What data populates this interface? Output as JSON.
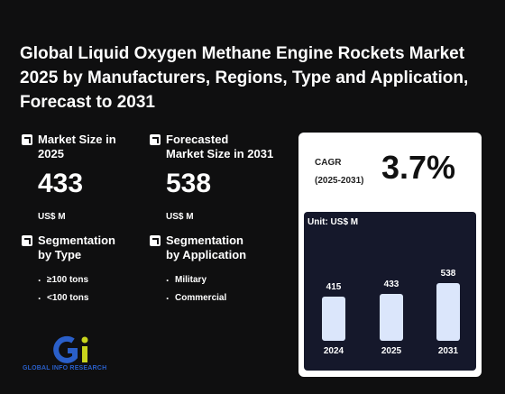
{
  "title": "Global Liquid Oxygen Methane Engine Rockets Market 2025 by Manufacturers, Regions, Type and Application, Forecast to 2031",
  "market_size": {
    "label_line1": "Market Size in",
    "label_line2": "2025",
    "value": "433",
    "unit": "US$ M"
  },
  "forecast_size": {
    "label_line1": "Forecasted",
    "label_line2": "Market Size in 2031",
    "value": "538",
    "unit": "US$ M"
  },
  "segmentation_type": {
    "label_line1": "Segmentation",
    "label_line2": "by Type",
    "items": [
      "≥100 tons",
      "<100 tons"
    ]
  },
  "segmentation_application": {
    "label_line1": "Segmentation",
    "label_line2": "by Application",
    "items": [
      "Military",
      "Commercial"
    ]
  },
  "cagr": {
    "label": "CAGR",
    "period": "(2025-2031)",
    "value": "3.7%"
  },
  "chart_data": {
    "type": "bar",
    "unit_label": "Unit: US$ M",
    "categories": [
      "2024",
      "2025",
      "2031"
    ],
    "values": [
      415,
      433,
      538
    ],
    "bar_color": "#dbe6fb",
    "background": "#15182b"
  },
  "logo": {
    "text": "GLOBAL INFO RESEARCH",
    "colors": [
      "#2a5fc9",
      "#c8d41c"
    ]
  }
}
